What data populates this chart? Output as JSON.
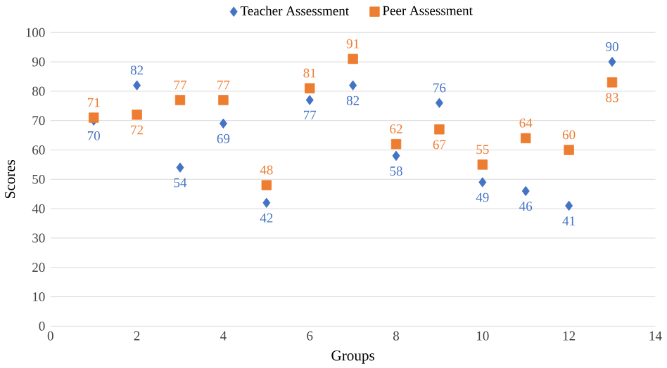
{
  "chart_data": {
    "type": "scatter",
    "xlabel": "Groups",
    "ylabel": "Scores",
    "xlim": [
      0,
      14
    ],
    "xticks": [
      0,
      2,
      4,
      6,
      8,
      10,
      12,
      14
    ],
    "ylim": [
      0,
      100
    ],
    "yticks": [
      0,
      10,
      20,
      30,
      40,
      50,
      60,
      70,
      80,
      90,
      100
    ],
    "x": [
      1,
      2,
      3,
      4,
      5,
      6,
      7,
      8,
      9,
      10,
      11,
      12,
      13
    ],
    "series": [
      {
        "name": "Teacher Assessment",
        "color": "#4472c4",
        "marker": "diamond",
        "values": [
          70,
          82,
          54,
          69,
          42,
          77,
          82,
          58,
          76,
          49,
          46,
          41,
          90
        ]
      },
      {
        "name": "Peer Assessment",
        "color": "#ed7d31",
        "marker": "square",
        "values": [
          71,
          72,
          77,
          77,
          48,
          81,
          91,
          62,
          67,
          55,
          64,
          60,
          83
        ]
      }
    ],
    "data_labels": true,
    "grid": "y",
    "legend": "top"
  }
}
